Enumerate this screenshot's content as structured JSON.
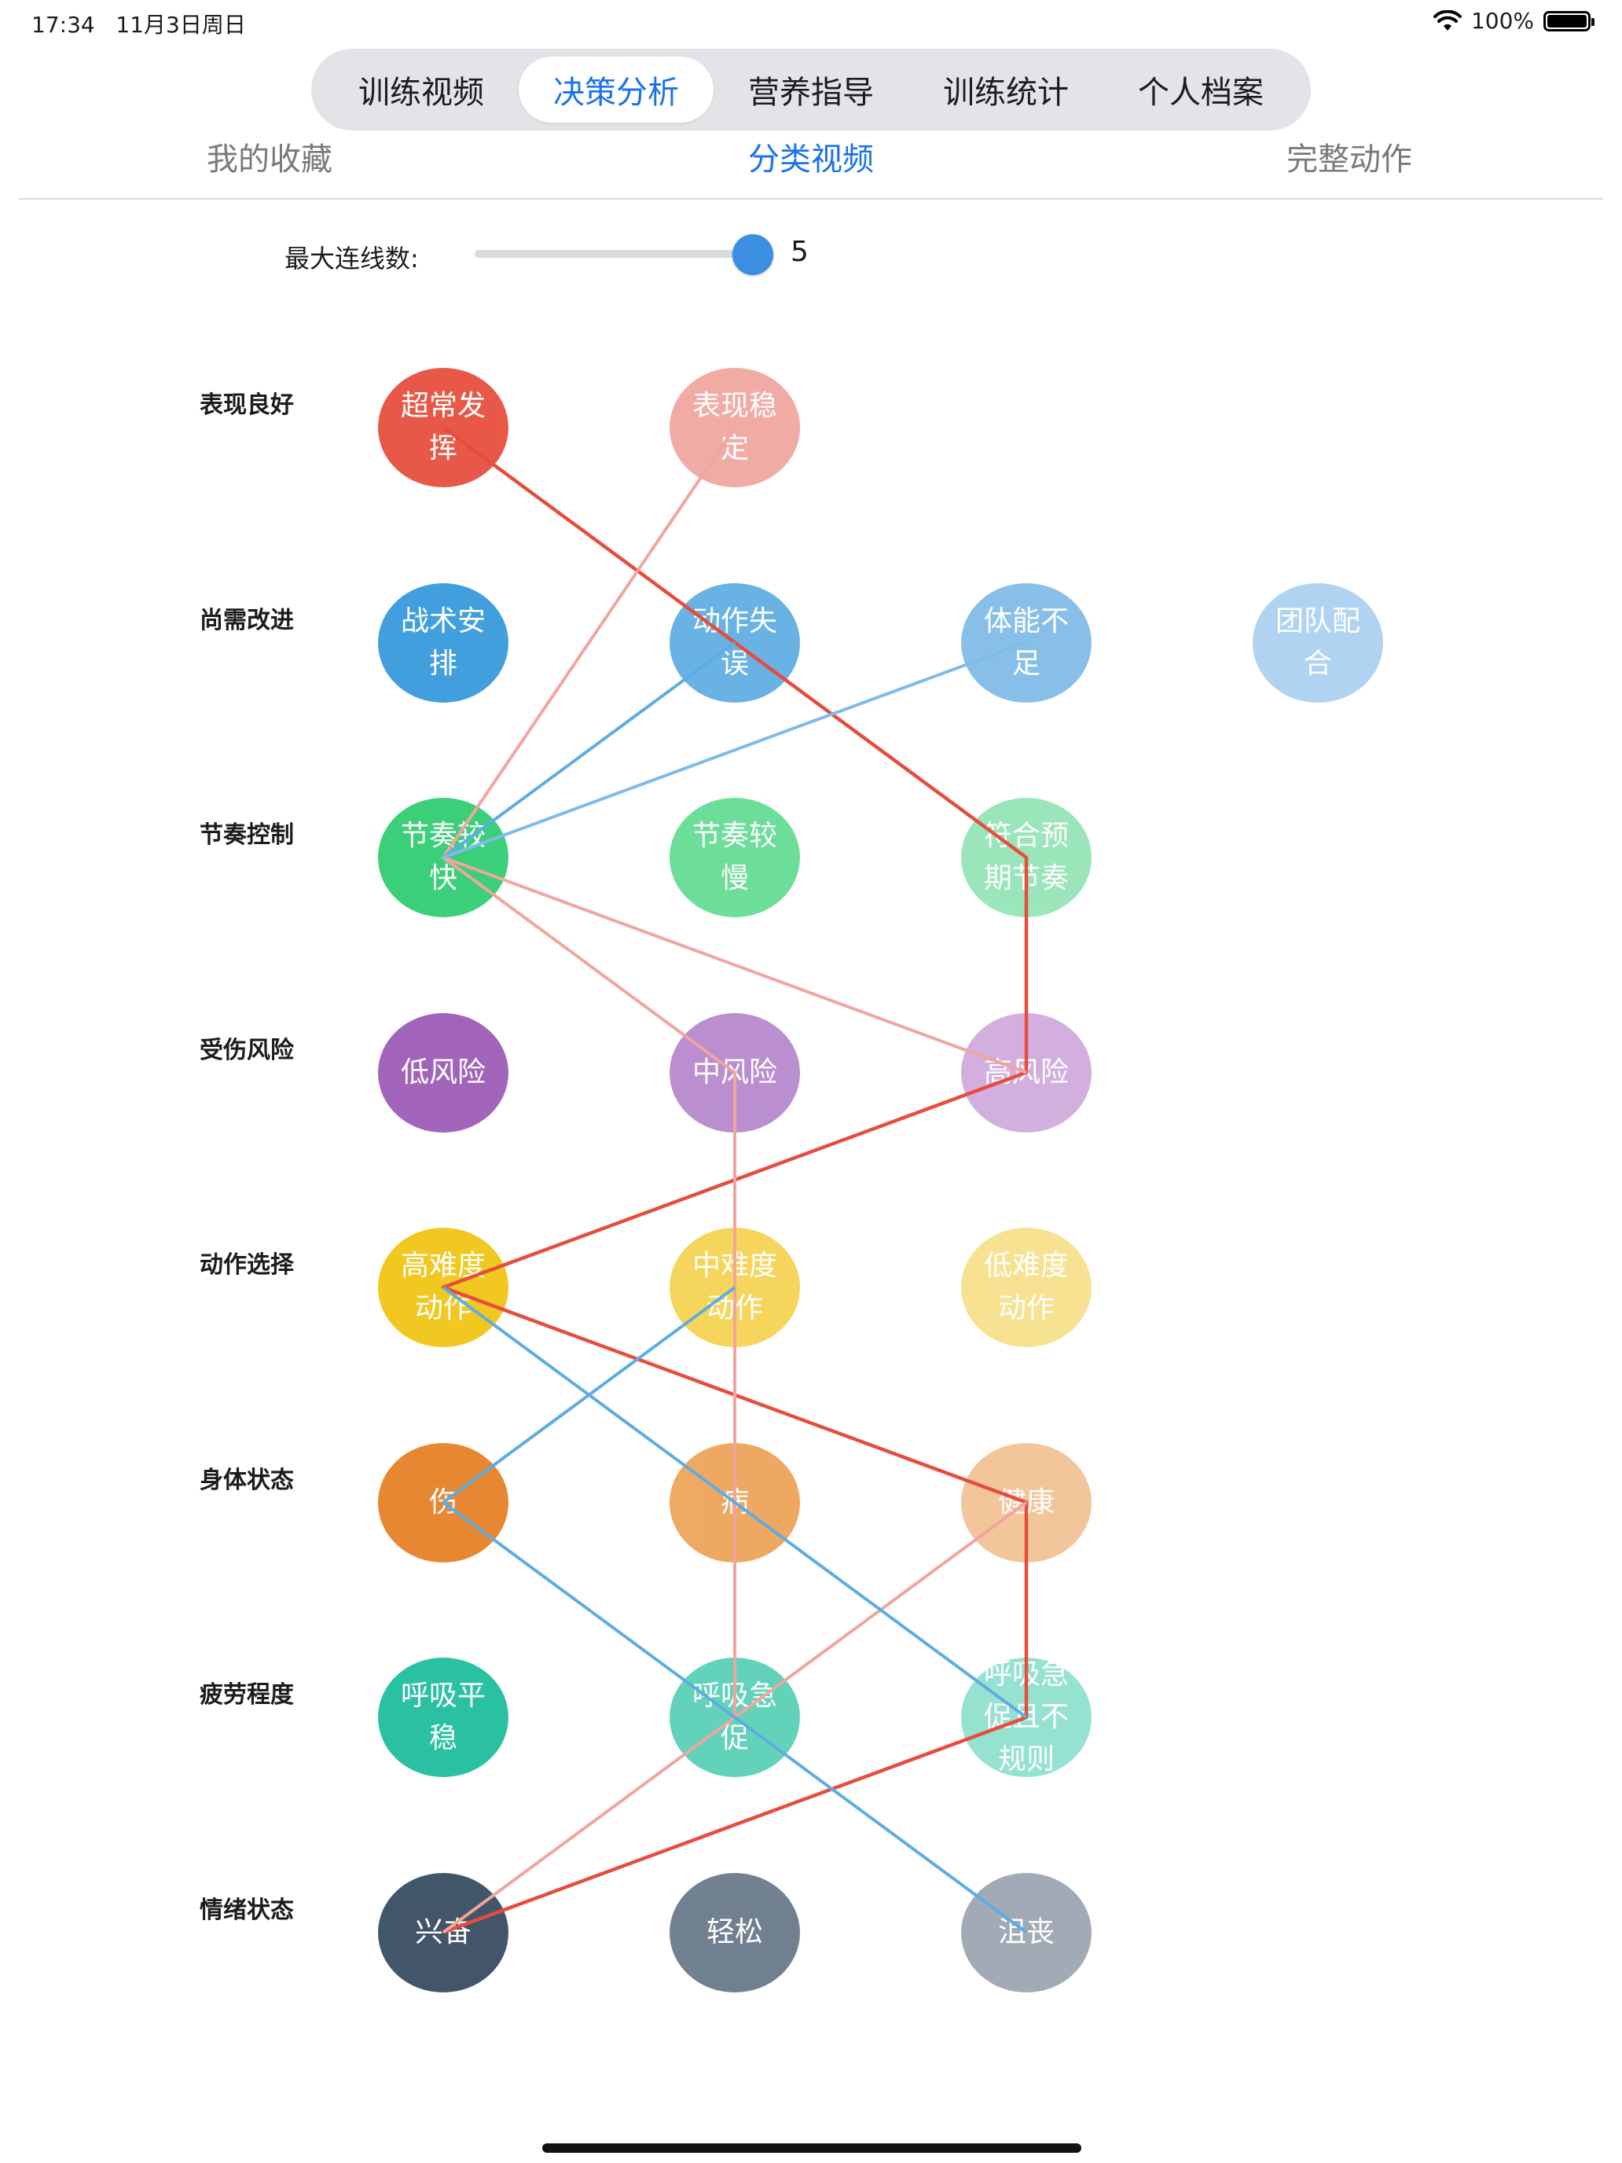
{
  "status_bar": {
    "time": "17:34",
    "date": "11月3日周日",
    "battery": "100%"
  },
  "tabs": [
    {
      "label": "训练视频",
      "active": false
    },
    {
      "label": "决策分析",
      "active": true
    },
    {
      "label": "营养指导",
      "active": false
    },
    {
      "label": "训练统计",
      "active": false
    },
    {
      "label": "个人档案",
      "active": false
    }
  ],
  "subtabs": [
    {
      "label": "我的收藏",
      "active": false
    },
    {
      "label": "分类视频",
      "active": true
    },
    {
      "label": "完整动作",
      "active": false
    }
  ],
  "slider": {
    "label": "最大连线数:",
    "value": "5",
    "min": 1,
    "max": 5
  },
  "rows": [
    {
      "label": "表现良好",
      "nodes": [
        {
          "text": "超常发挥",
          "color": "#e74c3c"
        },
        {
          "text": "表现稳定",
          "color": "#f1a59f"
        }
      ]
    },
    {
      "label": "尚需改进",
      "nodes": [
        {
          "text": "战术安排",
          "color": "#3498db"
        },
        {
          "text": "动作失误",
          "color": "#5dade2"
        },
        {
          "text": "体能不足",
          "color": "#7fbbe8"
        },
        {
          "text": "团队配合",
          "color": "#a9d0f0"
        }
      ]
    },
    {
      "label": "节奏控制",
      "nodes": [
        {
          "text": "节奏较快",
          "color": "#2ecc71"
        },
        {
          "text": "节奏较慢",
          "color": "#63db93"
        },
        {
          "text": "符合预期节奏",
          "color": "#93e4b5"
        }
      ]
    },
    {
      "label": "受伤风险",
      "nodes": [
        {
          "text": "低风险",
          "color": "#9b59b6"
        },
        {
          "text": "中风险",
          "color": "#b586cc"
        },
        {
          "text": "高风险",
          "color": "#cfaadc"
        }
      ]
    },
    {
      "label": "动作选择",
      "nodes": [
        {
          "text": "高难度动作",
          "color": "#f1c40f"
        },
        {
          "text": "中难度动作",
          "color": "#f5d24f"
        },
        {
          "text": "低难度动作",
          "color": "#f7e08a"
        }
      ]
    },
    {
      "label": "身体状态",
      "nodes": [
        {
          "text": "伤",
          "color": "#e67e22"
        },
        {
          "text": "病",
          "color": "#eda257"
        },
        {
          "text": "健康",
          "color": "#f3c193"
        }
      ]
    },
    {
      "label": "疲劳程度",
      "nodes": [
        {
          "text": "呼吸平稳",
          "color": "#1abc9c"
        },
        {
          "text": "呼吸急促",
          "color": "#57d0b5"
        },
        {
          "text": "呼吸急促且不规则",
          "color": "#8fe0cd"
        }
      ]
    },
    {
      "label": "情绪状态",
      "nodes": [
        {
          "text": "兴奋",
          "color": "#34495e"
        },
        {
          "text": "轻松",
          "color": "#677788"
        },
        {
          "text": "沮丧",
          "color": "#9aa4b0"
        }
      ]
    }
  ],
  "links": [
    {
      "color": "#e74c3c",
      "path": [
        [
          0,
          0
        ],
        [
          2,
          2
        ],
        [
          3,
          2
        ],
        [
          4,
          0
        ],
        [
          5,
          2
        ],
        [
          6,
          2
        ],
        [
          7,
          0
        ]
      ]
    },
    {
      "color": "#f1a59f",
      "path": [
        [
          0,
          1
        ],
        [
          2,
          0
        ],
        [
          3,
          1
        ],
        [
          6,
          1
        ],
        [
          7,
          0
        ]
      ]
    },
    {
      "color": "#f1a59f",
      "path": [
        [
          2,
          0
        ],
        [
          3,
          2
        ]
      ]
    },
    {
      "color": "#f1a59f",
      "path": [
        [
          6,
          1
        ],
        [
          5,
          2
        ]
      ]
    },
    {
      "color": "#5dade2",
      "path": [
        [
          1,
          1
        ],
        [
          2,
          0
        ]
      ]
    },
    {
      "color": "#7fbbe8",
      "path": [
        [
          1,
          2
        ],
        [
          2,
          0
        ]
      ]
    },
    {
      "color": "#5dade2",
      "path": [
        [
          4,
          0
        ],
        [
          6,
          2
        ]
      ]
    },
    {
      "color": "#5dade2",
      "path": [
        [
          4,
          1
        ],
        [
          5,
          0
        ],
        [
          7,
          2
        ]
      ]
    }
  ]
}
